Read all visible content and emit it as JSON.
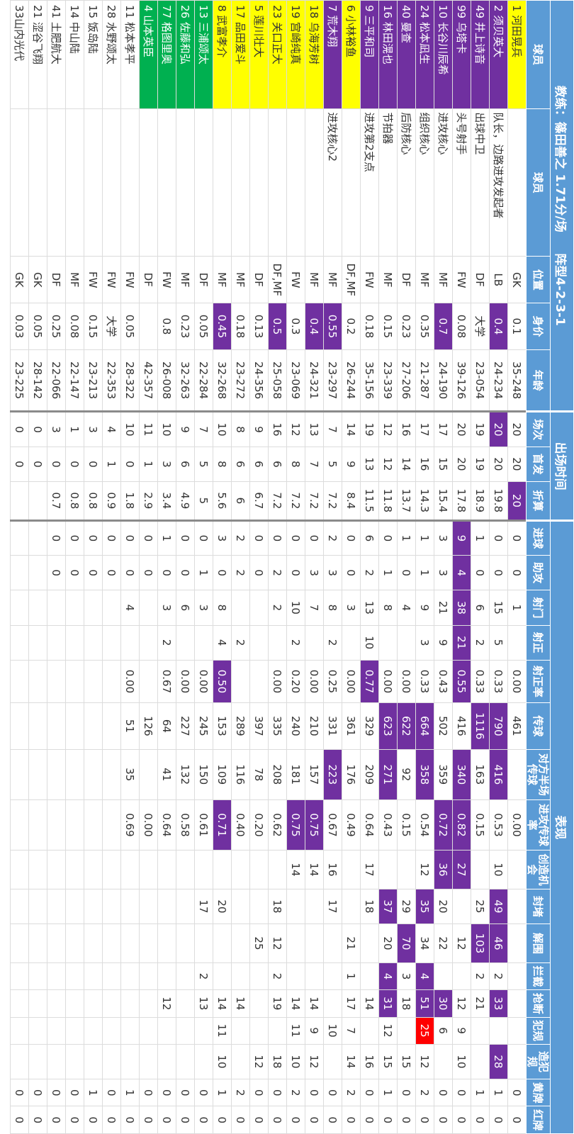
{
  "banner": {
    "coach": "教练：篠田善之  1.71分/场",
    "formation": "阵型4-2-3-1",
    "minutes": "出场时间",
    "performance": "表现"
  },
  "headers": [
    "球员",
    "球员",
    "位置",
    "身价",
    "年龄",
    "场次",
    "首发",
    "折算",
    "进球",
    "助攻",
    "射门",
    "射正",
    "射正率",
    "传球",
    "对方半场传球",
    "进攻传球率",
    "创造机会",
    "封堵",
    "解围",
    "拦截",
    "抢断",
    "犯规",
    "造犯规",
    "黄牌",
    "红牌"
  ],
  "rows": [
    {
      "color": "yellow",
      "cells": [
        "1  河田晃兵",
        "",
        "GK",
        "0.1",
        "35-248",
        "20",
        "20",
        "20",
        "0",
        "0",
        "1",
        "",
        "0.00",
        "461",
        "",
        "0.00",
        "",
        "",
        "",
        "",
        "",
        "",
        "",
        "0",
        "0"
      ],
      "hi": [
        7
      ]
    },
    {
      "color": "purple",
      "cells": [
        "2  须贝英大",
        "队长，边路进攻发起者",
        "LB",
        "0.4",
        "24-234",
        "20",
        "20",
        "19.8",
        "0",
        "0",
        "15",
        "5",
        "0.33",
        "790",
        "416",
        "0.53",
        "10",
        "49",
        "46",
        "2",
        "33",
        "",
        "28",
        "1",
        "0"
      ],
      "hi": [
        3,
        5,
        13,
        14,
        17,
        18,
        20,
        22
      ]
    },
    {
      "color": "purple",
      "cells": [
        "49 井上诗音",
        "出球中卫",
        "DF",
        "大学",
        "23-054",
        "19",
        "19",
        "18.9",
        "1",
        "0",
        "6",
        "2",
        "0.33",
        "1116",
        "163",
        "0.15",
        "",
        "25",
        "103",
        "2",
        "21",
        "",
        "",
        "1",
        "0"
      ],
      "hi": [
        13,
        18
      ]
    },
    {
      "color": "purple",
      "cells": [
        "99 乌塔卡",
        "头号射手",
        "FW",
        "0.08",
        "39-126",
        "20",
        "20",
        "17.8",
        "9",
        "4",
        "38",
        "21",
        "0.55",
        "416",
        "340",
        "0.82",
        "27",
        "",
        "12",
        "",
        "12",
        "9",
        "10",
        "0",
        "0"
      ],
      "hi": [
        8,
        9,
        10,
        11,
        12,
        14,
        15,
        16
      ]
    },
    {
      "color": "purple",
      "cells": [
        "10 长谷川辰希",
        "进攻核心",
        "MF",
        "0.7",
        "24-190",
        "17",
        "15",
        "15.4",
        "3",
        "3",
        "21",
        "9",
        "0.43",
        "502",
        "359",
        "0.72",
        "36",
        "20",
        "22",
        "",
        "30",
        "6",
        "",
        "0",
        "0"
      ],
      "hi": [
        3,
        15,
        16,
        20
      ]
    },
    {
      "color": "purple",
      "cells": [
        "24 松本凪生",
        "组织核心",
        "MF",
        "0.35",
        "21-287",
        "17",
        "16",
        "14.3",
        "1",
        "1",
        "9",
        "3",
        "0.33",
        "664",
        "358",
        "0.54",
        "12",
        "35",
        "34",
        "4",
        "51",
        "25",
        "12",
        "2",
        "0"
      ],
      "hi": [
        13,
        14,
        17,
        19,
        20
      ],
      "red": [
        21
      ]
    },
    {
      "color": "purple",
      "cells": [
        "40  曼查",
        "后防核心",
        "DF",
        "0.23",
        "27-206",
        "16",
        "14",
        "13.7",
        "1",
        "0",
        "4",
        "",
        "0.00",
        "622",
        "92",
        "0.15",
        "",
        "29",
        "70",
        "3",
        "18",
        "",
        "15",
        "0",
        "0"
      ],
      "hi": [
        13,
        18
      ]
    },
    {
      "color": "purple",
      "cells": [
        "16 林田滉也",
        "节拍器",
        "MF",
        "0.15",
        "23-339",
        "12",
        "12",
        "11.8",
        "0",
        "1",
        "8",
        "",
        "0.00",
        "623",
        "271",
        "0.43",
        "",
        "37",
        "20",
        "4",
        "31",
        "12",
        "15",
        "1",
        "0"
      ],
      "hi": [
        13,
        14,
        17,
        19,
        20
      ]
    },
    {
      "color": "purple",
      "cells": [
        "9  三平和司",
        "进攻第2支点",
        "FW",
        "0.18",
        "35-156",
        "19",
        "13",
        "11.5",
        "6",
        "2",
        "13",
        "10",
        "0.77",
        "329",
        "209",
        "0.64",
        "17",
        "18",
        "",
        "",
        "14",
        "",
        "16",
        "0",
        "0"
      ],
      "hi": [
        12
      ]
    },
    {
      "color": "yellow",
      "cells": [
        "6  小林裕鱼",
        "",
        "DF,MF",
        "0.2",
        "26-244",
        "14",
        "9",
        "8.4",
        "0",
        "0",
        "3",
        "",
        "0.00",
        "361",
        "176",
        "0.49",
        "",
        "",
        "21",
        "1",
        "17",
        "7",
        "14",
        "2",
        "0"
      ],
      "hi": []
    },
    {
      "color": "purple",
      "cells": [
        "7   荒木翔",
        "进攻核心2",
        "MF",
        "0.55",
        "23-297",
        "7",
        "5",
        "7.2",
        "2",
        "3",
        "8",
        "2",
        "0.25",
        "331",
        "223",
        "0.67",
        "16",
        "17",
        "",
        "",
        "",
        "10",
        "",
        "0",
        "0"
      ],
      "hi": [
        3,
        14
      ]
    },
    {
      "color": "yellow",
      "cells": [
        "18 乌海芳树",
        "",
        "MF",
        "0.4",
        "24-321",
        "13",
        "7",
        "7.2",
        "0",
        "3",
        "7",
        "",
        "0.00",
        "210",
        "157",
        "0.75",
        "14",
        "",
        "",
        "",
        "14",
        "9",
        "12",
        "0",
        "0"
      ],
      "hi": [
        3,
        15
      ]
    },
    {
      "color": "yellow",
      "cells": [
        "19  宫崎纯真",
        "",
        "FW",
        "0.3",
        "23-069",
        "12",
        "8",
        "7.2",
        "0",
        "0",
        "10",
        "2",
        "0.20",
        "240",
        "181",
        "0.75",
        "14",
        "",
        "",
        "",
        "14",
        "11",
        "10",
        "2",
        "0"
      ],
      "hi": [
        15
      ]
    },
    {
      "color": "yellow",
      "cells": [
        "23  关口正大",
        "",
        "DF,MF",
        "0.5",
        "25-058",
        "16",
        "6",
        "7.2",
        "0",
        "2",
        "2",
        "",
        "0.00",
        "335",
        "208",
        "0.62",
        "",
        "18",
        "12",
        "2",
        "19",
        "",
        "18",
        "0",
        "0"
      ],
      "hi": [
        3
      ]
    },
    {
      "color": "yellow",
      "cells": [
        "5  莲川壮大",
        "",
        "DF",
        "0.13",
        "24-356",
        "9",
        "6",
        "6.7",
        "0",
        "0",
        "",
        "",
        "",
        "397",
        "78",
        "0.20",
        "",
        "",
        "25",
        "",
        "",
        "",
        "12",
        "0",
        "0"
      ],
      "hi": []
    },
    {
      "color": "yellow",
      "cells": [
        "17  品田爱斗",
        "",
        "MF",
        "0.18",
        "23-272",
        "8",
        "6",
        "6",
        "2",
        "2",
        "",
        "2",
        "",
        "289",
        "116",
        "0.40",
        "",
        "",
        "",
        "",
        "14",
        "",
        "",
        "2",
        "0"
      ],
      "hi": []
    },
    {
      "color": "yellow",
      "cells": [
        "8  武富孝介",
        "",
        "MF",
        "0.45",
        "32-268",
        "10",
        "8",
        "5.6",
        "3",
        "0",
        "8",
        "4",
        "0.50",
        "153",
        "109",
        "0.71",
        "",
        "20",
        "",
        "",
        "14",
        "11",
        "10",
        "1",
        "0"
      ],
      "hi": [
        3,
        12,
        15
      ]
    },
    {
      "color": "green",
      "cells": [
        "13  三浦颂太",
        "",
        "DF",
        "0.05",
        "22-284",
        "7",
        "5",
        "5",
        "0",
        "1",
        "3",
        "",
        "0.00",
        "245",
        "150",
        "0.61",
        "",
        "17",
        "",
        "2",
        "13",
        "",
        "",
        "0",
        "0"
      ],
      "hi": []
    },
    {
      "color": "green",
      "cells": [
        "26  佐藤和弘",
        "",
        "MF",
        "0.23",
        "32-263",
        "9",
        "6",
        "4.9",
        "0",
        "0",
        "6",
        "",
        "0.00",
        "227",
        "132",
        "0.58",
        "",
        "",
        "",
        "",
        "",
        "",
        "",
        "0",
        "0"
      ],
      "hi": []
    },
    {
      "color": "green",
      "cells": [
        "77  格图里奥",
        "",
        "FW",
        "0.8",
        "26-008",
        "10",
        "3",
        "3.4",
        "1",
        "0",
        "3",
        "2",
        "0.67",
        "64",
        "41",
        "0.64",
        "",
        "",
        "",
        "",
        "12",
        "",
        "",
        "0",
        "0"
      ],
      "hi": []
    },
    {
      "color": "green",
      "cells": [
        "4  山本英臣",
        "",
        "DF",
        "",
        "42-357",
        "11",
        "1",
        "2.9",
        "0",
        "0",
        "",
        "",
        "",
        "126",
        "",
        "0.00",
        "",
        "",
        "",
        "",
        "",
        "",
        "",
        "0",
        "0"
      ],
      "hi": []
    },
    {
      "color": "",
      "cells": [
        "11  松本孝平",
        "",
        "FW",
        "0.05",
        "28-322",
        "10",
        "0",
        "1.8",
        "0",
        "0",
        "4",
        "",
        "0.00",
        "51",
        "35",
        "0.69",
        "",
        "",
        "",
        "",
        "",
        "",
        "",
        "1",
        "0"
      ],
      "hi": []
    },
    {
      "color": "",
      "cells": [
        "28  水野颂太",
        "",
        "FW",
        "大学",
        "22-353",
        "4",
        "1",
        "0.9",
        "0",
        "0",
        "",
        "",
        "",
        "",
        "",
        "",
        "",
        "",
        "",
        "",
        "",
        "",
        "",
        "0",
        "0"
      ],
      "hi": []
    },
    {
      "color": "",
      "cells": [
        "15  饭岛陆",
        "",
        "FW",
        "0.15",
        "23-213",
        "3",
        "0",
        "0.8",
        "0",
        "0",
        "",
        "",
        "",
        "",
        "",
        "",
        "",
        "",
        "",
        "",
        "",
        "",
        "",
        "1",
        "0"
      ],
      "hi": []
    },
    {
      "color": "",
      "cells": [
        "14  中山陆",
        "",
        "MF",
        "0.08",
        "22-147",
        "1",
        "0",
        "0.8",
        "0",
        "0",
        "",
        "",
        "",
        "",
        "",
        "",
        "",
        "",
        "",
        "",
        "",
        "",
        "",
        "0",
        "0"
      ],
      "hi": []
    },
    {
      "color": "",
      "cells": [
        "41  土肥航大",
        "",
        "DF",
        "0.25",
        "22-066",
        "3",
        "0",
        "0.7",
        "0",
        "0",
        "",
        "",
        "",
        "",
        "",
        "",
        "",
        "",
        "",
        "",
        "",
        "",
        "",
        "0",
        "0"
      ],
      "hi": []
    },
    {
      "color": "",
      "cells": [
        "21  涩谷飞翔",
        "",
        "GK",
        "0.05",
        "28-142",
        "0",
        "0",
        "",
        "",
        "",
        "",
        "",
        "",
        "",
        "",
        "",
        "",
        "",
        "",
        "",
        "",
        "",
        "",
        "0",
        "0"
      ],
      "hi": []
    },
    {
      "color": "",
      "cells": [
        "33山内光代",
        "",
        "GK",
        "0.03",
        "23-225",
        "0",
        "0",
        "",
        "",
        "",
        "",
        "",
        "",
        "",
        "",
        "",
        "",
        "",
        "",
        "",
        "",
        "",
        "",
        "0",
        "0"
      ],
      "hi": []
    }
  ]
}
